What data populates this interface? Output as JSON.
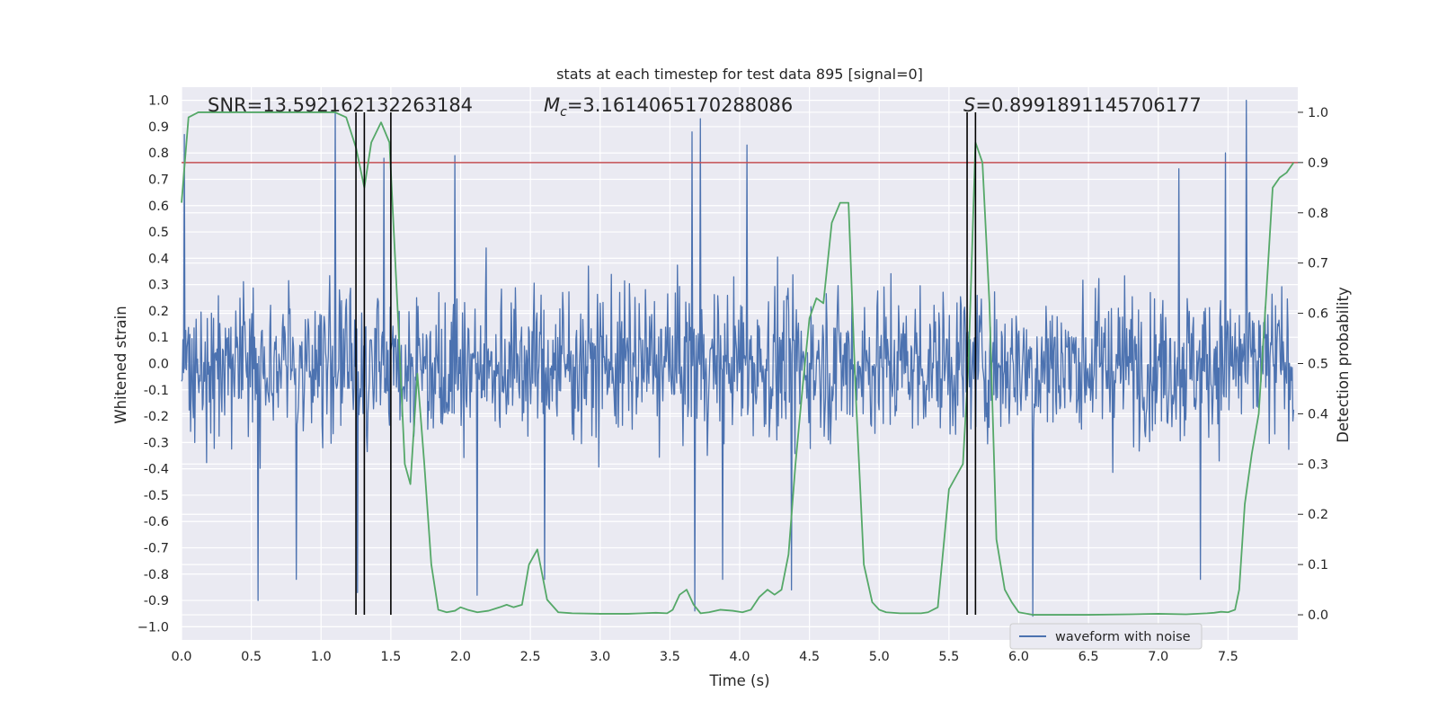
{
  "chart_data": {
    "type": "line",
    "title": "stats at each timestep for test data 895 [signal=0]",
    "xlabel": "Time (s)",
    "ylabel_left": "Whitened strain",
    "ylabel_right": "Detection probability",
    "xlim": [
      0.0,
      8.0
    ],
    "ylim_left": [
      -1.05,
      1.05
    ],
    "ylim_right": [
      -0.05,
      1.05
    ],
    "x_ticks": [
      "0.0",
      "0.5",
      "1.0",
      "1.5",
      "2.0",
      "2.5",
      "3.0",
      "3.5",
      "4.0",
      "4.5",
      "5.0",
      "5.5",
      "6.0",
      "6.5",
      "7.0",
      "7.5"
    ],
    "y_ticks_left": [
      "1.0",
      "0.9",
      "0.8",
      "0.7",
      "0.6",
      "0.5",
      "0.4",
      "0.3",
      "0.2",
      "0.1",
      "0.0",
      "-0.1",
      "-0.2",
      "-0.3",
      "-0.4",
      "-0.5",
      "-0.6",
      "-0.7",
      "-0.8",
      "-0.9",
      "−1.0"
    ],
    "y_ticks_right": [
      "1.0",
      "0.9",
      "0.8",
      "0.7",
      "0.6",
      "0.5",
      "0.4",
      "0.3",
      "0.2",
      "0.1",
      "0.0"
    ],
    "grid": true,
    "legend": {
      "position": "bottom-right",
      "entries": [
        "waveform with noise"
      ]
    },
    "annotations": {
      "snr": "SNR=13.592162132263184",
      "mc_symbol": "M",
      "mc_sub": "c",
      "mc_value": "=3.1614065170288086",
      "s_symbol": "S",
      "s_value": "=0.8991891145706177"
    },
    "threshold": {
      "axis": "right",
      "value": 0.9,
      "color": "#c44e52"
    },
    "vertical_lines": [
      1.25,
      1.31,
      1.5,
      5.63,
      5.69
    ],
    "vertical_line_range_right": [
      0.0,
      1.0
    ],
    "series": [
      {
        "name": "waveform with noise",
        "axis": "left",
        "color": "#4c72b0",
        "style": "noise",
        "sample_count": 1600,
        "typical_amplitude": 0.36,
        "x_range": [
          0.0,
          7.97
        ],
        "spikes": [
          {
            "x": 0.02,
            "y": 0.87
          },
          {
            "x": 0.55,
            "y": -0.9
          },
          {
            "x": 0.82,
            "y": -0.82
          },
          {
            "x": 1.1,
            "y": 0.99
          },
          {
            "x": 1.26,
            "y": -0.87
          },
          {
            "x": 1.45,
            "y": 0.78
          },
          {
            "x": 1.96,
            "y": 0.79
          },
          {
            "x": 2.12,
            "y": -0.88
          },
          {
            "x": 2.6,
            "y": -0.82
          },
          {
            "x": 3.66,
            "y": 0.88
          },
          {
            "x": 3.72,
            "y": 0.93
          },
          {
            "x": 3.68,
            "y": -0.94
          },
          {
            "x": 3.88,
            "y": -0.82
          },
          {
            "x": 4.05,
            "y": 0.83
          },
          {
            "x": 4.37,
            "y": -0.86
          },
          {
            "x": 6.1,
            "y": -0.96
          },
          {
            "x": 7.63,
            "y": 1.0
          },
          {
            "x": 7.3,
            "y": -0.82
          },
          {
            "x": 7.15,
            "y": 0.74
          },
          {
            "x": 7.48,
            "y": 0.8
          }
        ]
      },
      {
        "name": "",
        "axis": "right",
        "color": "#55a868",
        "x": [
          0.0,
          0.05,
          0.12,
          0.25,
          0.5,
          0.75,
          1.0,
          1.1,
          1.18,
          1.25,
          1.31,
          1.36,
          1.43,
          1.49,
          1.55,
          1.6,
          1.64,
          1.69,
          1.74,
          1.79,
          1.84,
          1.9,
          1.96,
          2.0,
          2.05,
          2.12,
          2.2,
          2.28,
          2.33,
          2.38,
          2.44,
          2.49,
          2.55,
          2.62,
          2.7,
          2.8,
          3.0,
          3.2,
          3.3,
          3.4,
          3.48,
          3.52,
          3.57,
          3.62,
          3.67,
          3.72,
          3.78,
          3.86,
          3.95,
          4.02,
          4.08,
          4.14,
          4.2,
          4.25,
          4.3,
          4.35,
          4.4,
          4.45,
          4.5,
          4.55,
          4.6,
          4.66,
          4.72,
          4.78,
          4.83,
          4.89,
          4.95,
          5.0,
          5.05,
          5.15,
          5.25,
          5.3,
          5.35,
          5.42,
          5.5,
          5.56,
          5.6,
          5.64,
          5.69,
          5.74,
          5.79,
          5.84,
          5.9,
          5.95,
          6.0,
          6.1,
          6.2,
          6.5,
          6.8,
          7.0,
          7.2,
          7.35,
          7.4,
          7.45,
          7.5,
          7.55,
          7.58,
          7.62,
          7.67,
          7.72,
          7.77,
          7.82,
          7.87,
          7.92,
          7.97
        ],
        "y": [
          0.82,
          0.99,
          1.0,
          1.0,
          1.0,
          1.0,
          1.0,
          1.0,
          0.99,
          0.93,
          0.85,
          0.94,
          0.98,
          0.94,
          0.6,
          0.3,
          0.26,
          0.48,
          0.3,
          0.1,
          0.01,
          0.005,
          0.008,
          0.015,
          0.01,
          0.005,
          0.008,
          0.015,
          0.02,
          0.015,
          0.02,
          0.1,
          0.13,
          0.03,
          0.005,
          0.003,
          0.002,
          0.002,
          0.003,
          0.004,
          0.003,
          0.01,
          0.04,
          0.05,
          0.02,
          0.003,
          0.005,
          0.01,
          0.008,
          0.005,
          0.01,
          0.035,
          0.05,
          0.04,
          0.05,
          0.12,
          0.3,
          0.45,
          0.59,
          0.63,
          0.62,
          0.78,
          0.82,
          0.82,
          0.45,
          0.1,
          0.025,
          0.01,
          0.005,
          0.003,
          0.003,
          0.003,
          0.005,
          0.015,
          0.25,
          0.28,
          0.3,
          0.5,
          0.94,
          0.9,
          0.62,
          0.15,
          0.05,
          0.025,
          0.005,
          0.0,
          0.0,
          0.0,
          0.001,
          0.002,
          0.001,
          0.003,
          0.004,
          0.006,
          0.005,
          0.01,
          0.05,
          0.22,
          0.32,
          0.4,
          0.62,
          0.85,
          0.87,
          0.88,
          0.9
        ]
      }
    ]
  }
}
